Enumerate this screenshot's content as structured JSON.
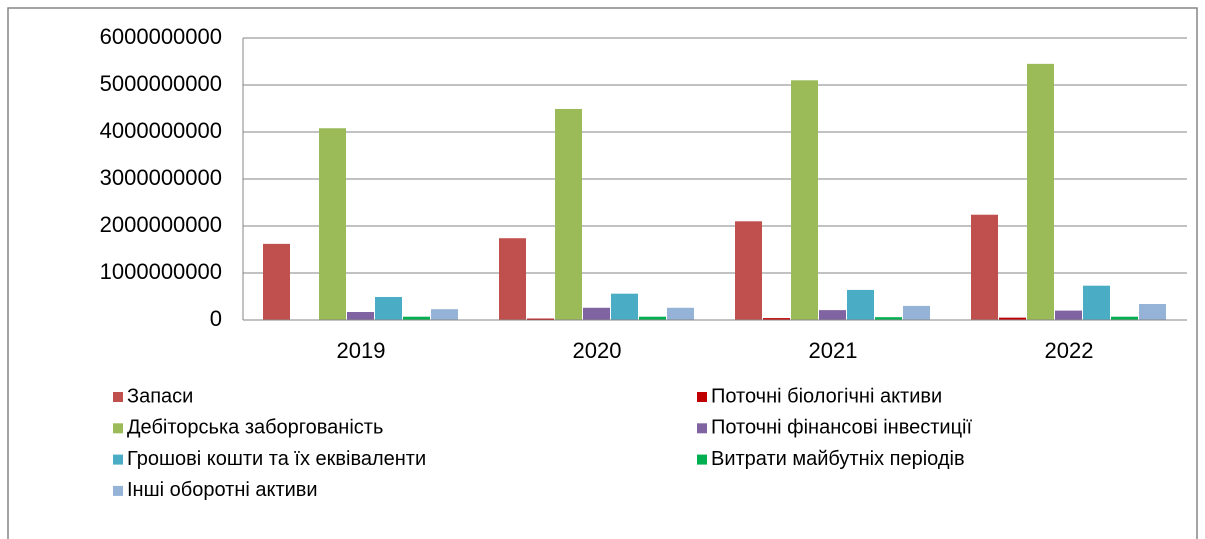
{
  "chart_data": {
    "type": "bar",
    "categories": [
      "2019",
      "2020",
      "2021",
      "2022"
    ],
    "series": [
      {
        "name": "Запаси",
        "color": "#c0504d",
        "values": [
          1620000000,
          1740000000,
          2100000000,
          2240000000
        ]
      },
      {
        "name": "Поточні біологічні активи",
        "color": "#c00000",
        "values": [
          10000000,
          30000000,
          40000000,
          50000000
        ]
      },
      {
        "name": "Дебіторська заборгованість",
        "color": "#9bbb59",
        "values": [
          4080000000,
          4490000000,
          5100000000,
          5450000000
        ]
      },
      {
        "name": "Поточні фінансові інвестиції",
        "color": "#8064a2",
        "values": [
          170000000,
          260000000,
          210000000,
          200000000
        ]
      },
      {
        "name": "Грошові кошти та їх еквіваленти",
        "color": "#4bacc6",
        "values": [
          490000000,
          560000000,
          640000000,
          730000000
        ]
      },
      {
        "name": "Витрати майбутніх періодів",
        "color": "#00b050",
        "values": [
          70000000,
          70000000,
          60000000,
          70000000
        ]
      },
      {
        "name": "Інші оборотні активи",
        "color": "#95b3d7",
        "values": [
          230000000,
          260000000,
          300000000,
          340000000
        ]
      }
    ],
    "ylim": [
      0,
      6000000000
    ],
    "yticks": [
      0,
      1000000000,
      2000000000,
      3000000000,
      4000000000,
      5000000000,
      6000000000
    ],
    "grid": true,
    "legend": "bottom"
  }
}
